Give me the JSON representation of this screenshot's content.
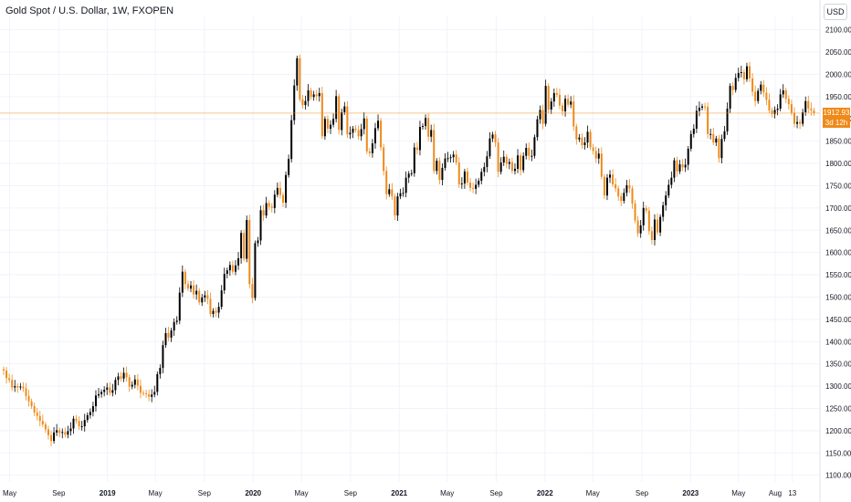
{
  "header": {
    "title": "Gold Spot / U.S. Dollar, 1W, FXOPEN",
    "currency": "USD"
  },
  "price_tag": {
    "price": "1912.93",
    "countdown": "3d 12h"
  },
  "colors": {
    "up": "#000000",
    "down": "#ef8a19",
    "grid": "#f0f3fa",
    "price_line": "#ef8a19"
  },
  "chart_data": {
    "type": "candlestick",
    "title": "Gold Spot / U.S. Dollar, 1W, FXOPEN",
    "ylim": [
      1085,
      2130
    ],
    "y_ticks": [
      2100,
      2050,
      2000,
      1950,
      1900,
      1850,
      1800,
      1750,
      1700,
      1650,
      1600,
      1550,
      1500,
      1450,
      1400,
      1350,
      1300,
      1250,
      1200,
      1150,
      1100
    ],
    "x_ticks": [
      {
        "label": "May",
        "date": "2018-05-01",
        "bold": false
      },
      {
        "label": "Sep",
        "date": "2018-09-01",
        "bold": false
      },
      {
        "label": "2019",
        "date": "2019-01-01",
        "bold": true
      },
      {
        "label": "May",
        "date": "2019-05-01",
        "bold": false
      },
      {
        "label": "Sep",
        "date": "2019-09-01",
        "bold": false
      },
      {
        "label": "2020",
        "date": "2020-01-01",
        "bold": true
      },
      {
        "label": "May",
        "date": "2020-05-01",
        "bold": false
      },
      {
        "label": "Sep",
        "date": "2020-09-01",
        "bold": false
      },
      {
        "label": "2021",
        "date": "2021-01-01",
        "bold": true
      },
      {
        "label": "May",
        "date": "2021-05-01",
        "bold": false
      },
      {
        "label": "Sep",
        "date": "2021-09-01",
        "bold": false
      },
      {
        "label": "2022",
        "date": "2022-01-01",
        "bold": true
      },
      {
        "label": "May",
        "date": "2022-05-01",
        "bold": false
      },
      {
        "label": "Sep",
        "date": "2022-09-01",
        "bold": false
      },
      {
        "label": "2023",
        "date": "2023-01-01",
        "bold": true
      },
      {
        "label": "May",
        "date": "2023-05-01",
        "bold": false
      },
      {
        "label": "Aug",
        "date": "2023-08-01",
        "bold": false
      },
      {
        "label": "13",
        "date": "2023-09-13",
        "bold": false
      }
    ],
    "last_price": 1912.93,
    "start_date": "2018-04-16",
    "closes": [
      1335,
      1318,
      1314,
      1297,
      1300,
      1297,
      1299,
      1295,
      1278,
      1266,
      1255,
      1241,
      1233,
      1222,
      1214,
      1203,
      1190,
      1177,
      1196,
      1201,
      1195,
      1197,
      1191,
      1199,
      1205,
      1227,
      1222,
      1210,
      1210,
      1224,
      1235,
      1242,
      1255,
      1279,
      1282,
      1287,
      1292,
      1297,
      1285,
      1291,
      1314,
      1322,
      1317,
      1330,
      1320,
      1299,
      1303,
      1315,
      1301,
      1285,
      1284,
      1282,
      1276,
      1281,
      1287,
      1327,
      1341,
      1392,
      1419,
      1409,
      1425,
      1444,
      1447,
      1510,
      1557,
      1529,
      1519,
      1526,
      1506,
      1514,
      1488,
      1499,
      1504,
      1496,
      1462,
      1469,
      1465,
      1478,
      1515,
      1552,
      1560,
      1572,
      1557,
      1571,
      1587,
      1644,
      1586,
      1673,
      1529,
      1498,
      1621,
      1627,
      1695,
      1683,
      1711,
      1703,
      1700,
      1730,
      1745,
      1729,
      1712,
      1774,
      1810,
      1897,
      1975,
      2036,
      1944,
      1931,
      1940,
      1964,
      1949,
      1955,
      1951,
      1958,
      1861,
      1900,
      1878,
      1887,
      1900,
      1951,
      1875,
      1915,
      1928,
      1865,
      1869,
      1878,
      1875,
      1861,
      1877,
      1901,
      1827,
      1823,
      1845,
      1879,
      1896,
      1836,
      1783,
      1731,
      1742,
      1726,
      1683,
      1726,
      1733,
      1734,
      1768,
      1777,
      1778,
      1836,
      1830,
      1882,
      1884,
      1902,
      1860,
      1875,
      1783,
      1806,
      1763,
      1790,
      1811,
      1812,
      1814,
      1820,
      1802,
      1753,
      1755,
      1782,
      1757,
      1745,
      1743,
      1752,
      1761,
      1781,
      1792,
      1816,
      1856,
      1865,
      1847,
      1781,
      1802,
      1815,
      1799,
      1803,
      1783,
      1788,
      1818,
      1785,
      1817,
      1835,
      1817,
      1817,
      1859,
      1899,
      1920,
      1889,
      1974,
      1921,
      1939,
      1958,
      1954,
      1930,
      1917,
      1945,
      1932,
      1939,
      1883,
      1854,
      1858,
      1841,
      1847,
      1871,
      1836,
      1828,
      1811,
      1822,
      1770,
      1728,
      1768,
      1775,
      1753,
      1744,
      1726,
      1716,
      1734,
      1751,
      1744,
      1710,
      1672,
      1643,
      1661,
      1700,
      1694,
      1648,
      1628,
      1674,
      1645,
      1680,
      1706,
      1728,
      1752,
      1768,
      1807,
      1782,
      1798,
      1791,
      1797,
      1833,
      1866,
      1878,
      1918,
      1925,
      1928,
      1927,
      1866,
      1866,
      1847,
      1856,
      1812,
      1855,
      1872,
      1923,
      1974,
      1965,
      1992,
      2003,
      2005,
      1989,
      2018,
      1991,
      1961,
      1940,
      1963,
      1977,
      1959,
      1943,
      1919,
      1911,
      1920,
      1923,
      1955,
      1964,
      1945,
      1933,
      1914,
      1889,
      1893,
      1889,
      1915,
      1940,
      1923,
      1919,
      1913
    ]
  }
}
